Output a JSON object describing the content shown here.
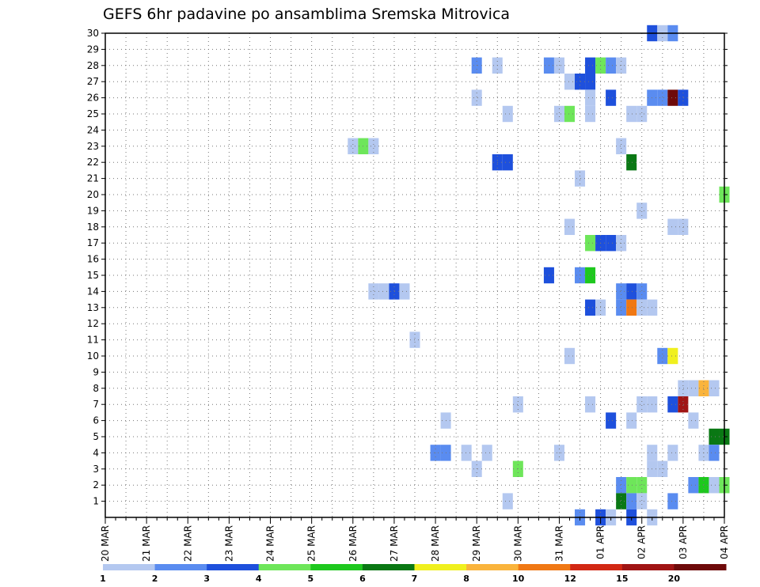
{
  "chart_data": {
    "type": "heatmap",
    "title": "GEFS 6hr padavine po ansamblima Sremska Mitrovica",
    "x_tick_labels": [
      "20 MAR",
      "21 MAR",
      "22 MAR",
      "23 MAR",
      "24 MAR",
      "25 MAR",
      "26 MAR",
      "27 MAR",
      "28 MAR",
      "29 MAR",
      "30 MAR",
      "31 MAR",
      "01 APR",
      "02 APR",
      "03 APR",
      "04 APR"
    ],
    "y_tick_labels": [
      "1",
      "2",
      "3",
      "4",
      "5",
      "6",
      "7",
      "8",
      "9",
      "10",
      "11",
      "12",
      "13",
      "14",
      "15",
      "16",
      "17",
      "18",
      "19",
      "20",
      "21",
      "22",
      "23",
      "24",
      "25",
      "26",
      "27",
      "28",
      "29",
      "30"
    ],
    "xlim_days": [
      0,
      15
    ],
    "ylim_members": [
      0,
      30
    ],
    "steps_per_day": 4,
    "grid": true,
    "colorbar": {
      "position": "bottom",
      "tick_labels": [
        "1",
        "2",
        "3",
        "4",
        "5",
        "6",
        "7",
        "8",
        "10",
        "12",
        "15",
        "20"
      ],
      "colors": [
        "#b4c8f0",
        "#5a8cf0",
        "#1e50dc",
        "#6ee65a",
        "#1ec81e",
        "#0a7814",
        "#f0f01e",
        "#fab43c",
        "#f07814",
        "#d22814",
        "#a01414",
        "#6e0a0a"
      ]
    },
    "cells": [
      {
        "m": 30,
        "d": 13.25,
        "c": 2
      },
      {
        "m": 30,
        "d": 13.5,
        "c": 0
      },
      {
        "m": 30,
        "d": 13.75,
        "c": 1
      },
      {
        "m": 28,
        "d": 9.0,
        "c": 1
      },
      {
        "m": 28,
        "d": 9.5,
        "c": 0
      },
      {
        "m": 28,
        "d": 10.75,
        "c": 1
      },
      {
        "m": 28,
        "d": 11.0,
        "c": 0
      },
      {
        "m": 28,
        "d": 11.75,
        "c": 2
      },
      {
        "m": 28,
        "d": 12.0,
        "c": 3
      },
      {
        "m": 28,
        "d": 12.25,
        "c": 1
      },
      {
        "m": 28,
        "d": 12.5,
        "c": 0
      },
      {
        "m": 27,
        "d": 11.25,
        "c": 0
      },
      {
        "m": 27,
        "d": 11.5,
        "c": 2
      },
      {
        "m": 27,
        "d": 11.75,
        "c": 2
      },
      {
        "m": 26,
        "d": 9.0,
        "c": 0
      },
      {
        "m": 26,
        "d": 11.75,
        "c": 0
      },
      {
        "m": 26,
        "d": 12.25,
        "c": 2
      },
      {
        "m": 26,
        "d": 13.25,
        "c": 1
      },
      {
        "m": 26,
        "d": 13.5,
        "c": 1
      },
      {
        "m": 26,
        "d": 13.75,
        "c": 11
      },
      {
        "m": 26,
        "d": 14.0,
        "c": 2
      },
      {
        "m": 25,
        "d": 9.75,
        "c": 0
      },
      {
        "m": 25,
        "d": 11.0,
        "c": 0
      },
      {
        "m": 25,
        "d": 11.25,
        "c": 3
      },
      {
        "m": 25,
        "d": 11.75,
        "c": 0
      },
      {
        "m": 25,
        "d": 12.75,
        "c": 0
      },
      {
        "m": 25,
        "d": 13.0,
        "c": 0
      },
      {
        "m": 23,
        "d": 6.0,
        "c": 0
      },
      {
        "m": 23,
        "d": 6.25,
        "c": 3
      },
      {
        "m": 23,
        "d": 6.5,
        "c": 0
      },
      {
        "m": 23,
        "d": 12.5,
        "c": 0
      },
      {
        "m": 22,
        "d": 9.5,
        "c": 2
      },
      {
        "m": 22,
        "d": 9.75,
        "c": 2
      },
      {
        "m": 22,
        "d": 12.75,
        "c": 5
      },
      {
        "m": 21,
        "d": 11.5,
        "c": 0
      },
      {
        "m": 20,
        "d": 15.0,
        "c": 3
      },
      {
        "m": 19,
        "d": 13.0,
        "c": 0
      },
      {
        "m": 18,
        "d": 11.25,
        "c": 0
      },
      {
        "m": 18,
        "d": 13.75,
        "c": 0
      },
      {
        "m": 18,
        "d": 14.0,
        "c": 0
      },
      {
        "m": 17,
        "d": 11.75,
        "c": 3
      },
      {
        "m": 17,
        "d": 12.0,
        "c": 2
      },
      {
        "m": 17,
        "d": 12.25,
        "c": 2
      },
      {
        "m": 17,
        "d": 12.5,
        "c": 0
      },
      {
        "m": 15,
        "d": 10.75,
        "c": 2
      },
      {
        "m": 15,
        "d": 11.5,
        "c": 1
      },
      {
        "m": 15,
        "d": 11.75,
        "c": 4
      },
      {
        "m": 14,
        "d": 6.5,
        "c": 0
      },
      {
        "m": 14,
        "d": 6.75,
        "c": 0
      },
      {
        "m": 14,
        "d": 7.0,
        "c": 2
      },
      {
        "m": 14,
        "d": 7.25,
        "c": 0
      },
      {
        "m": 14,
        "d": 12.5,
        "c": 1
      },
      {
        "m": 14,
        "d": 12.75,
        "c": 2
      },
      {
        "m": 14,
        "d": 13.0,
        "c": 1
      },
      {
        "m": 13,
        "d": 11.75,
        "c": 2
      },
      {
        "m": 13,
        "d": 12.0,
        "c": 0
      },
      {
        "m": 13,
        "d": 12.5,
        "c": 1
      },
      {
        "m": 13,
        "d": 12.75,
        "c": 8
      },
      {
        "m": 13,
        "d": 13.0,
        "c": 0
      },
      {
        "m": 13,
        "d": 13.25,
        "c": 0
      },
      {
        "m": 11,
        "d": 7.5,
        "c": 0
      },
      {
        "m": 10,
        "d": 11.25,
        "c": 0
      },
      {
        "m": 10,
        "d": 13.5,
        "c": 1
      },
      {
        "m": 10,
        "d": 13.75,
        "c": 6
      },
      {
        "m": 8,
        "d": 14.0,
        "c": 0
      },
      {
        "m": 8,
        "d": 14.25,
        "c": 0
      },
      {
        "m": 8,
        "d": 14.5,
        "c": 7
      },
      {
        "m": 8,
        "d": 14.75,
        "c": 0
      },
      {
        "m": 7,
        "d": 10.0,
        "c": 0
      },
      {
        "m": 7,
        "d": 11.75,
        "c": 0
      },
      {
        "m": 7,
        "d": 13.0,
        "c": 0
      },
      {
        "m": 7,
        "d": 13.25,
        "c": 0
      },
      {
        "m": 7,
        "d": 13.75,
        "c": 2
      },
      {
        "m": 7,
        "d": 14.0,
        "c": 10
      },
      {
        "m": 6,
        "d": 8.25,
        "c": 0
      },
      {
        "m": 6,
        "d": 12.25,
        "c": 2
      },
      {
        "m": 6,
        "d": 12.75,
        "c": 0
      },
      {
        "m": 6,
        "d": 14.25,
        "c": 0
      },
      {
        "m": 5,
        "d": 14.75,
        "c": 5
      },
      {
        "m": 5,
        "d": 15.0,
        "c": 5
      },
      {
        "m": 4,
        "d": 8.0,
        "c": 1
      },
      {
        "m": 4,
        "d": 8.25,
        "c": 1
      },
      {
        "m": 4,
        "d": 8.75,
        "c": 0
      },
      {
        "m": 4,
        "d": 9.25,
        "c": 0
      },
      {
        "m": 4,
        "d": 11.0,
        "c": 0
      },
      {
        "m": 4,
        "d": 13.25,
        "c": 0
      },
      {
        "m": 4,
        "d": 13.75,
        "c": 0
      },
      {
        "m": 4,
        "d": 14.5,
        "c": 0
      },
      {
        "m": 4,
        "d": 14.75,
        "c": 1
      },
      {
        "m": 3,
        "d": 9.0,
        "c": 0
      },
      {
        "m": 3,
        "d": 10.0,
        "c": 3
      },
      {
        "m": 3,
        "d": 13.25,
        "c": 0
      },
      {
        "m": 3,
        "d": 13.5,
        "c": 0
      },
      {
        "m": 2,
        "d": 12.5,
        "c": 1
      },
      {
        "m": 2,
        "d": 12.75,
        "c": 3
      },
      {
        "m": 2,
        "d": 13.0,
        "c": 3
      },
      {
        "m": 2,
        "d": 14.25,
        "c": 1
      },
      {
        "m": 2,
        "d": 14.5,
        "c": 4
      },
      {
        "m": 2,
        "d": 14.75,
        "c": 0
      },
      {
        "m": 2,
        "d": 15.0,
        "c": 3
      },
      {
        "m": 1,
        "d": 9.75,
        "c": 0
      },
      {
        "m": 1,
        "d": 12.5,
        "c": 5
      },
      {
        "m": 1,
        "d": 12.75,
        "c": 1
      },
      {
        "m": 1,
        "d": 13.0,
        "c": 0
      },
      {
        "m": 1,
        "d": 13.75,
        "c": 1
      },
      {
        "m": 0,
        "d": 11.5,
        "c": 1
      },
      {
        "m": 0,
        "d": 12.0,
        "c": 2
      },
      {
        "m": 0,
        "d": 12.25,
        "c": 0
      },
      {
        "m": 0,
        "d": 12.75,
        "c": 2
      },
      {
        "m": 0,
        "d": 13.25,
        "c": 0
      }
    ]
  }
}
